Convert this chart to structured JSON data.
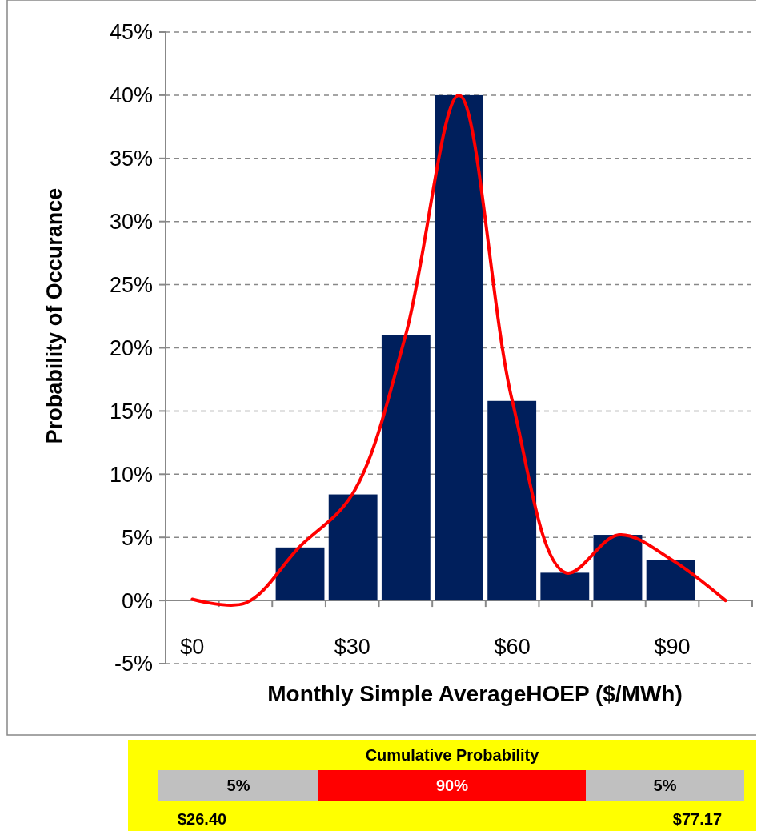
{
  "chart_data": [
    {
      "type": "bar",
      "xlabel": "Monthly Simple AverageHOEP ($/MWh)",
      "ylabel": "Probability of Occurance",
      "categories": [
        "$0",
        null,
        null,
        "$30",
        null,
        null,
        "$60",
        null,
        null,
        "$90",
        null
      ],
      "series": [
        {
          "type": "bar",
          "color": "#001f5c",
          "values": [
            null,
            null,
            4.2,
            8.4,
            21,
            40,
            15.8,
            2.2,
            5.2,
            3.2,
            null
          ]
        },
        {
          "type": "line",
          "color": "#ff0000",
          "values": [
            0.1,
            -0.2,
            4.2,
            8.4,
            21,
            40,
            15.8,
            2.2,
            5.2,
            3.2,
            0
          ]
        }
      ],
      "ylim": [
        -5,
        45
      ],
      "yticks": [
        {
          "value": -5,
          "label": "-5%"
        },
        {
          "value": 0,
          "label": "0%"
        },
        {
          "value": 5,
          "label": "5%"
        },
        {
          "value": 10,
          "label": "10%"
        },
        {
          "value": 15,
          "label": "15%"
        },
        {
          "value": 20,
          "label": "20%"
        },
        {
          "value": 25,
          "label": "25%"
        },
        {
          "value": 30,
          "label": "30%"
        },
        {
          "value": 35,
          "label": "35%"
        },
        {
          "value": 40,
          "label": "40%"
        },
        {
          "value": 45,
          "label": "45%"
        }
      ],
      "grid": "y",
      "marker": "none",
      "line_style": "solid"
    },
    {
      "type": "other",
      "title": "Cumulative Probability",
      "categories": [
        "5%",
        "90%",
        "5%"
      ],
      "colors": [
        "#c0c0c0",
        "#ff0000",
        "#c0c0c0"
      ],
      "annotations": [
        "$26.40",
        "$77.17"
      ]
    }
  ]
}
